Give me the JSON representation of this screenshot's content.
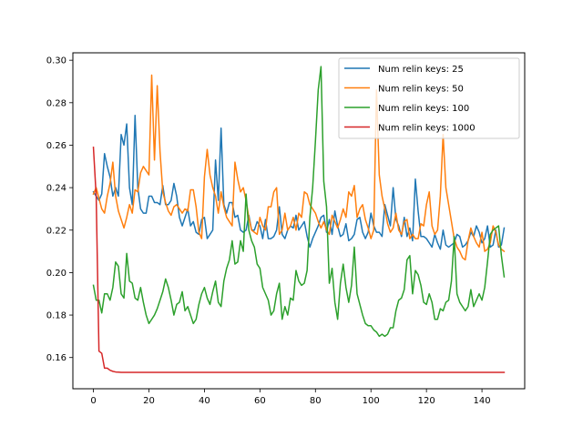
{
  "chart_data": {
    "type": "line",
    "title": "",
    "xlabel": "",
    "ylabel": "",
    "xlim": [
      -7.4,
      155.4
    ],
    "ylim": [
      0.1453,
      0.3035
    ],
    "xticks": [
      0,
      20,
      40,
      60,
      80,
      100,
      120,
      140
    ],
    "yticks": [
      0.16,
      0.18,
      0.2,
      0.22,
      0.24,
      0.26,
      0.28,
      0.3
    ],
    "ytick_labels": [
      "0.16",
      "0.18",
      "0.20",
      "0.22",
      "0.24",
      "0.26",
      "0.28",
      "0.30"
    ],
    "grid": false,
    "legend_position": "top-right",
    "x_start": 0,
    "x_step": 1,
    "series": [
      {
        "name": "Num relin keys: 25",
        "color": "#1f77b4",
        "values": [
          0.238,
          0.236,
          0.234,
          0.237,
          0.256,
          0.25,
          0.245,
          0.236,
          0.24,
          0.236,
          0.265,
          0.26,
          0.27,
          0.24,
          0.232,
          0.274,
          0.24,
          0.23,
          0.228,
          0.228,
          0.236,
          0.236,
          0.233,
          0.233,
          0.232,
          0.241,
          0.232,
          0.232,
          0.234,
          0.242,
          0.236,
          0.226,
          0.222,
          0.226,
          0.23,
          0.222,
          0.224,
          0.219,
          0.218,
          0.225,
          0.226,
          0.216,
          0.218,
          0.22,
          0.253,
          0.234,
          0.268,
          0.232,
          0.228,
          0.233,
          0.233,
          0.226,
          0.227,
          0.22,
          0.219,
          0.22,
          0.227,
          0.22,
          0.22,
          0.224,
          0.222,
          0.216,
          0.225,
          0.216,
          0.216,
          0.217,
          0.22,
          0.231,
          0.218,
          0.216,
          0.22,
          0.222,
          0.221,
          0.227,
          0.22,
          0.222,
          0.224,
          0.217,
          0.212,
          0.216,
          0.219,
          0.222,
          0.226,
          0.227,
          0.219,
          0.225,
          0.218,
          0.229,
          0.222,
          0.217,
          0.218,
          0.223,
          0.215,
          0.216,
          0.218,
          0.225,
          0.226,
          0.219,
          0.216,
          0.219,
          0.228,
          0.222,
          0.219,
          0.219,
          0.217,
          0.232,
          0.227,
          0.222,
          0.24,
          0.225,
          0.222,
          0.217,
          0.226,
          0.217,
          0.221,
          0.215,
          0.244,
          0.229,
          0.217,
          0.217,
          0.216,
          0.214,
          0.212,
          0.218,
          0.214,
          0.211,
          0.22,
          0.213,
          0.212,
          0.213,
          0.214,
          0.218,
          0.217,
          0.212,
          0.213,
          0.215,
          0.219,
          0.217,
          0.222,
          0.219,
          0.214,
          0.216,
          0.222,
          0.212,
          0.213,
          0.22,
          0.212,
          0.213,
          0.221
        ]
      },
      {
        "name": "Num relin keys: 50",
        "color": "#ff7f0e",
        "values": [
          0.237,
          0.24,
          0.235,
          0.23,
          0.228,
          0.236,
          0.242,
          0.252,
          0.236,
          0.229,
          0.225,
          0.221,
          0.226,
          0.232,
          0.228,
          0.239,
          0.238,
          0.247,
          0.25,
          0.248,
          0.246,
          0.293,
          0.253,
          0.288,
          0.257,
          0.238,
          0.233,
          0.229,
          0.227,
          0.231,
          0.232,
          0.23,
          0.228,
          0.23,
          0.229,
          0.239,
          0.239,
          0.231,
          0.219,
          0.216,
          0.245,
          0.258,
          0.246,
          0.24,
          0.236,
          0.228,
          0.238,
          0.231,
          0.226,
          0.224,
          0.222,
          0.252,
          0.244,
          0.238,
          0.24,
          0.234,
          0.226,
          0.22,
          0.219,
          0.218,
          0.226,
          0.222,
          0.22,
          0.231,
          0.231,
          0.238,
          0.24,
          0.218,
          0.22,
          0.228,
          0.22,
          0.222,
          0.226,
          0.22,
          0.228,
          0.226,
          0.238,
          0.237,
          0.232,
          0.23,
          0.228,
          0.224,
          0.221,
          0.224,
          0.22,
          0.218,
          0.227,
          0.224,
          0.221,
          0.225,
          0.23,
          0.226,
          0.238,
          0.236,
          0.241,
          0.226,
          0.23,
          0.232,
          0.225,
          0.221,
          0.216,
          0.22,
          0.286,
          0.246,
          0.236,
          0.23,
          0.223,
          0.219,
          0.221,
          0.228,
          0.22,
          0.218,
          0.224,
          0.225,
          0.216,
          0.218,
          0.216,
          0.216,
          0.223,
          0.222,
          0.232,
          0.238,
          0.222,
          0.218,
          0.22,
          0.236,
          0.265,
          0.24,
          0.232,
          0.224,
          0.216,
          0.212,
          0.21,
          0.207,
          0.206,
          0.215,
          0.221,
          0.217,
          0.214,
          0.212,
          0.219,
          0.21,
          0.211,
          0.214,
          0.222,
          0.219,
          0.213,
          0.211,
          0.21
        ]
      },
      {
        "name": "Num relin keys: 100",
        "color": "#2ca02c",
        "values": [
          0.194,
          0.187,
          0.187,
          0.181,
          0.19,
          0.19,
          0.187,
          0.193,
          0.205,
          0.203,
          0.19,
          0.188,
          0.209,
          0.196,
          0.195,
          0.188,
          0.187,
          0.193,
          0.186,
          0.18,
          0.176,
          0.178,
          0.18,
          0.183,
          0.187,
          0.191,
          0.197,
          0.193,
          0.187,
          0.18,
          0.185,
          0.186,
          0.191,
          0.182,
          0.184,
          0.18,
          0.176,
          0.178,
          0.185,
          0.19,
          0.193,
          0.188,
          0.185,
          0.191,
          0.196,
          0.186,
          0.184,
          0.196,
          0.202,
          0.206,
          0.215,
          0.204,
          0.205,
          0.215,
          0.21,
          0.237,
          0.22,
          0.215,
          0.212,
          0.204,
          0.202,
          0.193,
          0.19,
          0.187,
          0.18,
          0.182,
          0.19,
          0.195,
          0.178,
          0.184,
          0.18,
          0.188,
          0.187,
          0.201,
          0.196,
          0.194,
          0.195,
          0.201,
          0.226,
          0.24,
          0.262,
          0.286,
          0.297,
          0.243,
          0.231,
          0.195,
          0.202,
          0.186,
          0.178,
          0.195,
          0.204,
          0.193,
          0.186,
          0.194,
          0.212,
          0.19,
          0.185,
          0.18,
          0.176,
          0.175,
          0.175,
          0.173,
          0.172,
          0.17,
          0.171,
          0.17,
          0.171,
          0.174,
          0.174,
          0.182,
          0.187,
          0.188,
          0.192,
          0.206,
          0.208,
          0.19,
          0.201,
          0.199,
          0.194,
          0.186,
          0.185,
          0.19,
          0.186,
          0.178,
          0.178,
          0.183,
          0.182,
          0.186,
          0.187,
          0.196,
          0.217,
          0.19,
          0.186,
          0.184,
          0.182,
          0.184,
          0.192,
          0.184,
          0.187,
          0.19,
          0.187,
          0.193,
          0.205,
          0.218,
          0.22,
          0.221,
          0.222,
          0.208,
          0.198
        ]
      },
      {
        "name": "Num relin keys: 1000",
        "color": "#d62728",
        "values": [
          0.259,
          0.236,
          0.163,
          0.162,
          0.155,
          0.155,
          0.154,
          0.1535,
          0.1532,
          0.1531,
          0.153,
          0.153,
          0.153,
          0.153,
          0.153,
          0.153,
          0.153,
          0.153,
          0.153,
          0.153,
          0.153,
          0.153,
          0.153,
          0.153,
          0.153,
          0.153,
          0.153,
          0.153,
          0.153,
          0.153,
          0.153,
          0.153,
          0.153,
          0.153,
          0.153,
          0.153,
          0.153,
          0.153,
          0.153,
          0.153,
          0.153,
          0.153,
          0.153,
          0.153,
          0.153,
          0.153,
          0.153,
          0.153,
          0.153,
          0.153,
          0.153,
          0.153,
          0.153,
          0.153,
          0.153,
          0.153,
          0.153,
          0.153,
          0.153,
          0.153,
          0.153,
          0.153,
          0.153,
          0.153,
          0.153,
          0.153,
          0.153,
          0.153,
          0.153,
          0.153,
          0.153,
          0.153,
          0.153,
          0.153,
          0.153,
          0.153,
          0.153,
          0.153,
          0.153,
          0.153,
          0.153,
          0.153,
          0.153,
          0.153,
          0.153,
          0.153,
          0.153,
          0.153,
          0.153,
          0.153,
          0.153,
          0.153,
          0.153,
          0.153,
          0.153,
          0.153,
          0.153,
          0.153,
          0.153,
          0.153,
          0.153,
          0.153,
          0.153,
          0.153,
          0.153,
          0.153,
          0.153,
          0.153,
          0.153,
          0.153,
          0.153,
          0.153,
          0.153,
          0.153,
          0.153,
          0.153,
          0.153,
          0.153,
          0.153,
          0.153,
          0.153,
          0.153,
          0.153,
          0.153,
          0.153,
          0.153,
          0.153,
          0.153,
          0.153,
          0.153,
          0.153,
          0.153,
          0.153,
          0.153,
          0.153,
          0.153,
          0.153,
          0.153,
          0.153,
          0.153,
          0.153,
          0.153,
          0.153,
          0.153,
          0.153,
          0.153,
          0.153,
          0.153,
          0.153
        ]
      }
    ]
  }
}
